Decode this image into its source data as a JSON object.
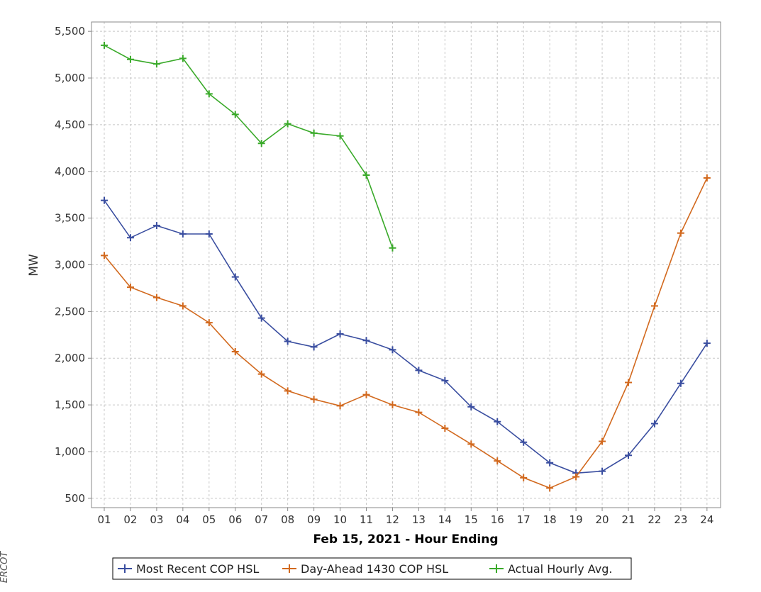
{
  "chart_data": {
    "type": "line",
    "xlabel": "Feb 15, 2021 - Hour Ending",
    "ylabel": "MW",
    "categories": [
      "01",
      "02",
      "03",
      "04",
      "05",
      "06",
      "07",
      "08",
      "09",
      "10",
      "11",
      "12",
      "13",
      "14",
      "15",
      "16",
      "17",
      "18",
      "19",
      "20",
      "21",
      "22",
      "23",
      "24"
    ],
    "y_ticks": [
      "5,500",
      "5,000",
      "4,500",
      "4,000",
      "3,500",
      "3,000",
      "2,500",
      "2,000",
      "1,500",
      "1,000",
      "500"
    ],
    "y_tick_values": [
      5500,
      5000,
      4500,
      4000,
      3500,
      3000,
      2500,
      2000,
      1500,
      1000,
      500
    ],
    "ylim": [
      400,
      5600
    ],
    "grid": true,
    "legend_position": "bottom",
    "series": [
      {
        "name": "Most Recent COP HSL",
        "color": "#3a4ea0",
        "values": [
          3690,
          3290,
          3420,
          3330,
          3330,
          2870,
          2430,
          2180,
          2120,
          2260,
          2190,
          2090,
          1870,
          1760,
          1480,
          1320,
          1100,
          880,
          770,
          790,
          960,
          1300,
          1730,
          2160
        ]
      },
      {
        "name": "Day-Ahead 1430 COP HSL",
        "color": "#d2691e",
        "values": [
          3100,
          2760,
          2650,
          2560,
          2380,
          2070,
          1830,
          1650,
          1560,
          1490,
          1610,
          1500,
          1420,
          1250,
          1080,
          900,
          720,
          610,
          730,
          1110,
          1740,
          2560,
          3340,
          3930
        ]
      },
      {
        "name": "Actual Hourly Avg.",
        "color": "#3aaa2a",
        "values": [
          5350,
          5200,
          5150,
          5210,
          4830,
          4610,
          4300,
          4510,
          4410,
          4380,
          3960,
          3180,
          null,
          null,
          null,
          null,
          null,
          null,
          null,
          null,
          null,
          null,
          null,
          null
        ]
      }
    ]
  },
  "watermark": "ERCOT"
}
